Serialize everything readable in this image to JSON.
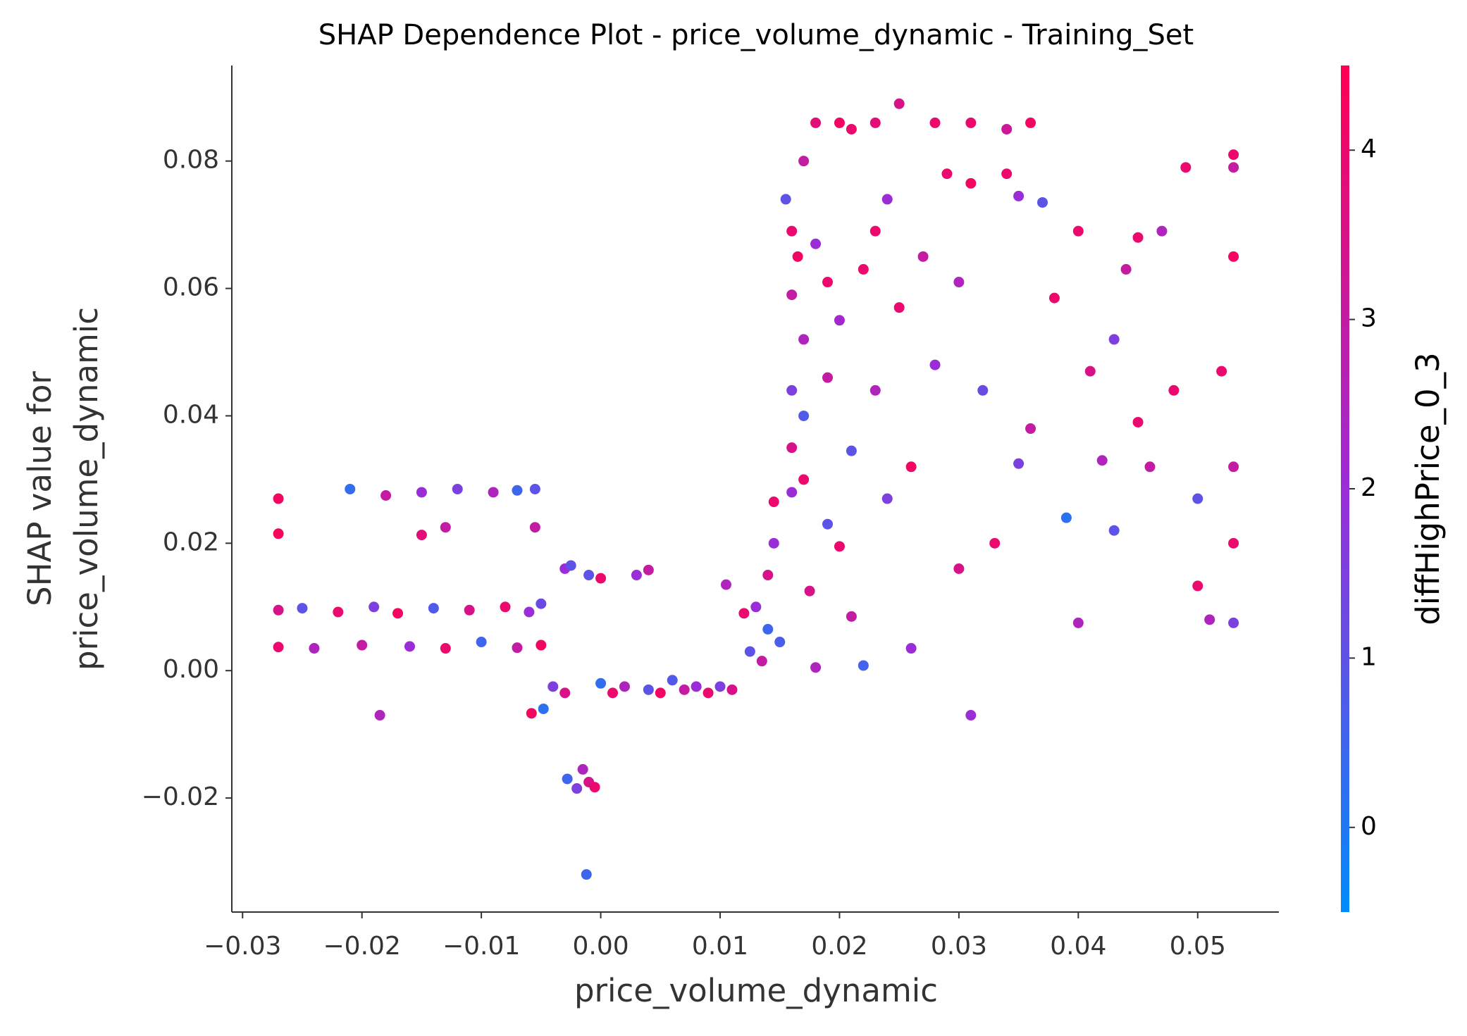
{
  "chart_data": {
    "type": "scatter",
    "title": "SHAP Dependence Plot - price_volume_dynamic - Training_Set",
    "xlabel": "price_volume_dynamic",
    "ylabel": [
      "SHAP value for",
      "price_volume_dynamic"
    ],
    "xlim": [
      -0.0309,
      0.0568
    ],
    "ylim": [
      -0.0379,
      0.095
    ],
    "xticks": [
      {
        "value": -0.03,
        "label": "−0.03"
      },
      {
        "value": -0.02,
        "label": "−0.02"
      },
      {
        "value": -0.01,
        "label": "−0.01"
      },
      {
        "value": 0,
        "label": "0.00"
      },
      0.01,
      0.02,
      0.03,
      0.04,
      0.05
    ],
    "yticks": [
      {
        "value": -0.02,
        "label": "−0.02"
      },
      {
        "value": 0,
        "label": "0.00"
      },
      0.02,
      0.04,
      0.06,
      0.08
    ],
    "colorbar": {
      "label": "diffHighPrice_0_3",
      "clim": [
        -0.5,
        4.5
      ],
      "ticks": [
        0,
        1,
        2,
        3,
        4
      ],
      "colormap": [
        "#008bfb",
        "#9b2dd8",
        "#ff0052"
      ]
    },
    "x": [
      -0.027,
      -0.027,
      -0.027,
      -0.027,
      -0.025,
      -0.024,
      -0.022,
      -0.021,
      -0.02,
      -0.019,
      -0.0185,
      -0.018,
      -0.017,
      -0.016,
      -0.015,
      -0.015,
      -0.014,
      -0.013,
      -0.013,
      -0.012,
      -0.011,
      -0.01,
      -0.009,
      -0.008,
      -0.007,
      -0.007,
      -0.006,
      -0.005,
      -0.0055,
      -0.0055,
      -0.005,
      -0.0058,
      -0.0048,
      -0.004,
      -0.003,
      -0.003,
      -0.0025,
      -0.0028,
      -0.002,
      -0.0015,
      -0.001,
      -0.0012,
      -0.0005,
      -0.001,
      0.0,
      0.0,
      0.001,
      0.002,
      0.003,
      0.004,
      0.004,
      0.005,
      0.006,
      0.007,
      0.008,
      0.009,
      0.01,
      0.011,
      0.0105,
      0.012,
      0.013,
      0.0125,
      0.0135,
      0.014,
      0.014,
      0.0145,
      0.0145,
      0.015,
      0.0155,
      0.016,
      0.016,
      0.016,
      0.016,
      0.016,
      0.0165,
      0.017,
      0.017,
      0.017,
      0.017,
      0.0175,
      0.018,
      0.018,
      0.018,
      0.019,
      0.019,
      0.019,
      0.02,
      0.02,
      0.02,
      0.021,
      0.021,
      0.021,
      0.022,
      0.022,
      0.023,
      0.023,
      0.023,
      0.024,
      0.024,
      0.025,
      0.025,
      0.026,
      0.026,
      0.027,
      0.028,
      0.028,
      0.029,
      0.03,
      0.03,
      0.031,
      0.031,
      0.031,
      0.032,
      0.033,
      0.034,
      0.034,
      0.035,
      0.035,
      0.036,
      0.036,
      0.037,
      0.038,
      0.039,
      0.04,
      0.04,
      0.041,
      0.042,
      0.043,
      0.043,
      0.044,
      0.045,
      0.045,
      0.046,
      0.047,
      0.048,
      0.049,
      0.05,
      0.05,
      0.051,
      0.052,
      0.053,
      0.053,
      0.053,
      0.053,
      0.053,
      0.053
    ],
    "values": [
      0.0095,
      0.0037,
      0.027,
      0.0215,
      0.0098,
      0.0035,
      0.0092,
      0.0285,
      0.004,
      0.01,
      -0.007,
      0.0275,
      0.009,
      0.0038,
      0.0213,
      0.028,
      0.0098,
      0.0035,
      0.0225,
      0.0285,
      0.0095,
      0.0045,
      0.028,
      0.01,
      0.0036,
      0.0283,
      0.0092,
      0.004,
      0.0285,
      0.0225,
      0.0105,
      -0.0067,
      -0.006,
      -0.0025,
      -0.0035,
      0.016,
      0.0165,
      -0.017,
      -0.0185,
      -0.0155,
      -0.0175,
      -0.032,
      -0.0183,
      0.015,
      0.0145,
      -0.002,
      -0.0035,
      -0.0025,
      0.015,
      0.0158,
      -0.003,
      -0.0035,
      -0.0015,
      -0.003,
      -0.0025,
      -0.0035,
      -0.0025,
      -0.003,
      0.0135,
      0.009,
      0.01,
      0.003,
      0.0015,
      0.0065,
      0.015,
      0.0265,
      0.02,
      0.0045,
      0.074,
      0.069,
      0.059,
      0.044,
      0.035,
      0.028,
      0.065,
      0.08,
      0.052,
      0.04,
      0.03,
      0.0125,
      0.086,
      0.0005,
      0.067,
      0.061,
      0.046,
      0.023,
      0.086,
      0.0195,
      0.055,
      0.085,
      0.0345,
      0.0085,
      0.063,
      0.0008,
      0.086,
      0.044,
      0.069,
      0.074,
      0.027,
      0.089,
      0.057,
      0.0035,
      0.032,
      0.065,
      0.086,
      0.048,
      0.078,
      0.016,
      0.061,
      0.086,
      -0.007,
      0.0765,
      0.044,
      0.02,
      0.078,
      0.085,
      0.0325,
      0.0745,
      0.086,
      0.038,
      0.0735,
      0.0585,
      0.024,
      0.069,
      0.0075,
      0.047,
      0.033,
      0.022,
      0.052,
      0.063,
      0.068,
      0.039,
      0.032,
      0.069,
      0.044,
      0.079,
      0.027,
      0.0133,
      0.008,
      0.047,
      0.081,
      0.065,
      0.02,
      0.0075,
      0.032,
      0.079
    ],
    "color_values": [
      3.5,
      4,
      4.2,
      4.3,
      1,
      2.5,
      4,
      0.3,
      3,
      1.5,
      2.5,
      3,
      4.2,
      2,
      3.8,
      2,
      0.8,
      4,
      3,
      1.5,
      3.5,
      0.5,
      2.5,
      4,
      3,
      0.5,
      2,
      4.2,
      1,
      3,
      1.2,
      4.2,
      0.2,
      1.5,
      3.5,
      2,
      1,
      0.5,
      1.5,
      2.5,
      3.5,
      0.5,
      4,
      1,
      4,
      0.3,
      4,
      2.5,
      2,
      3,
      1,
      4.2,
      0.8,
      3,
      2,
      4,
      1.5,
      3.5,
      2.5,
      4,
      2,
      1,
      3,
      0.5,
      3.5,
      4,
      2,
      0.7,
      1,
      4,
      3,
      1.5,
      3.5,
      2,
      4.2,
      3,
      2.5,
      0.8,
      4,
      3.5,
      3.8,
      2.5,
      2,
      4,
      3,
      1,
      4.2,
      4,
      2.2,
      4,
      1,
      3,
      4,
      0.6,
      3.8,
      2.5,
      4,
      2,
      1.5,
      3.5,
      4,
      2,
      4.2,
      3,
      4,
      2,
      4,
      3.5,
      2.5,
      4,
      2,
      4.2,
      1.2,
      4,
      4,
      3.2,
      1.5,
      2,
      4.2,
      3,
      1,
      4,
      0.2,
      4,
      2.5,
      3.5,
      2.5,
      1,
      1.5,
      3,
      4,
      4,
      3,
      2.5,
      4,
      4,
      1,
      4,
      2.5,
      4,
      4,
      4.2,
      4,
      1.5,
      3,
      3
    ]
  }
}
